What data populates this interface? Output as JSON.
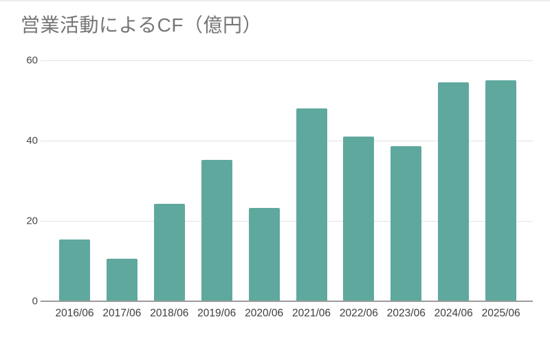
{
  "chart": {
    "title": "営業活動によるCF（億円）"
  },
  "chart_data": {
    "type": "bar",
    "title": "営業活動によるCF（億円）",
    "categories": [
      "2016/06",
      "2017/06",
      "2018/06",
      "2019/06",
      "2020/06",
      "2021/06",
      "2022/06",
      "2023/06",
      "2024/06",
      "2025/06"
    ],
    "values": [
      15.4,
      10.6,
      24.3,
      35.2,
      23.3,
      48.0,
      41.0,
      38.7,
      54.6,
      55.0
    ],
    "xlabel": "",
    "ylabel": "",
    "ylim": [
      0,
      60
    ],
    "yticks": [
      0,
      20,
      40,
      60
    ],
    "grid": true,
    "legend": false
  },
  "colors": {
    "bar": "#5FA89E",
    "title_text": "#757575",
    "y_tick_text": "#464646",
    "x_tick_text": "#3d3d3d",
    "gridline": "#e2e2e2",
    "baseline": "#9b9b9b",
    "background": "#ffffff"
  }
}
